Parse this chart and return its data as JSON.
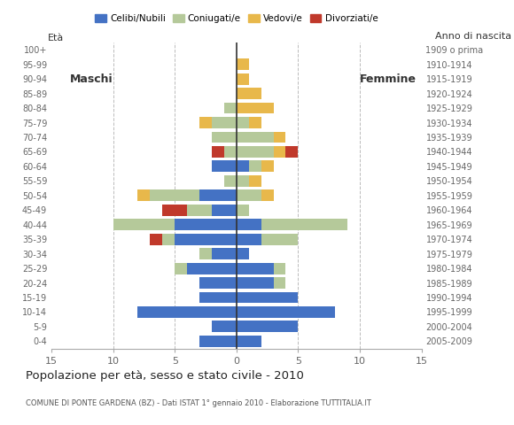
{
  "age_groups": [
    "0-4",
    "5-9",
    "10-14",
    "15-19",
    "20-24",
    "25-29",
    "30-34",
    "35-39",
    "40-44",
    "45-49",
    "50-54",
    "55-59",
    "60-64",
    "65-69",
    "70-74",
    "75-79",
    "80-84",
    "85-89",
    "90-94",
    "95-99",
    "100+"
  ],
  "birth_years": [
    "2005-2009",
    "2000-2004",
    "1995-1999",
    "1990-1994",
    "1985-1989",
    "1980-1984",
    "1975-1979",
    "1970-1974",
    "1965-1969",
    "1960-1964",
    "1955-1959",
    "1950-1954",
    "1945-1949",
    "1940-1944",
    "1935-1939",
    "1930-1934",
    "1925-1929",
    "1920-1924",
    "1915-1919",
    "1910-1914",
    "1909 o prima"
  ],
  "males": {
    "celibi": [
      3,
      2,
      8,
      3,
      3,
      4,
      2,
      5,
      5,
      2,
      3,
      0,
      2,
      0,
      0,
      0,
      0,
      0,
      0,
      0,
      0
    ],
    "coniugati": [
      0,
      0,
      0,
      0,
      0,
      1,
      1,
      1,
      5,
      2,
      4,
      1,
      0,
      1,
      2,
      2,
      1,
      0,
      0,
      0,
      0
    ],
    "vedovi": [
      0,
      0,
      0,
      0,
      0,
      0,
      0,
      0,
      0,
      0,
      1,
      0,
      0,
      0,
      0,
      1,
      0,
      0,
      0,
      0,
      0
    ],
    "divorziati": [
      0,
      0,
      0,
      0,
      0,
      0,
      0,
      1,
      0,
      2,
      0,
      0,
      0,
      1,
      0,
      0,
      0,
      0,
      0,
      0,
      0
    ]
  },
  "females": {
    "nubili": [
      2,
      5,
      8,
      5,
      3,
      3,
      1,
      2,
      2,
      0,
      0,
      0,
      1,
      0,
      0,
      0,
      0,
      0,
      0,
      0,
      0
    ],
    "coniugate": [
      0,
      0,
      0,
      0,
      1,
      1,
      0,
      3,
      7,
      1,
      2,
      1,
      1,
      3,
      3,
      1,
      0,
      0,
      0,
      0,
      0
    ],
    "vedove": [
      0,
      0,
      0,
      0,
      0,
      0,
      0,
      0,
      0,
      0,
      1,
      1,
      1,
      1,
      1,
      1,
      3,
      2,
      1,
      1,
      0
    ],
    "divorziate": [
      0,
      0,
      0,
      0,
      0,
      0,
      0,
      0,
      0,
      0,
      0,
      0,
      0,
      1,
      0,
      0,
      0,
      0,
      0,
      0,
      0
    ]
  },
  "colors": {
    "celibi_nubili": "#4472c4",
    "coniugati": "#b5c99a",
    "vedovi": "#e8b84b",
    "divorziati": "#c0392b"
  },
  "title": "Popolazione per età, sesso e stato civile - 2010",
  "subtitle": "COMUNE DI PONTE GARDENA (BZ) - Dati ISTAT 1° gennaio 2010 - Elaborazione TUTTITALIA.IT",
  "xlabel_left": "Maschi",
  "xlabel_right": "Femmine",
  "ylabel_left": "Età",
  "ylabel_right": "Anno di nascita",
  "xlim": 15,
  "background_color": "#ffffff",
  "legend_labels": [
    "Celibi/Nubili",
    "Coniugati/e",
    "Vedovi/e",
    "Divorziati/e"
  ]
}
